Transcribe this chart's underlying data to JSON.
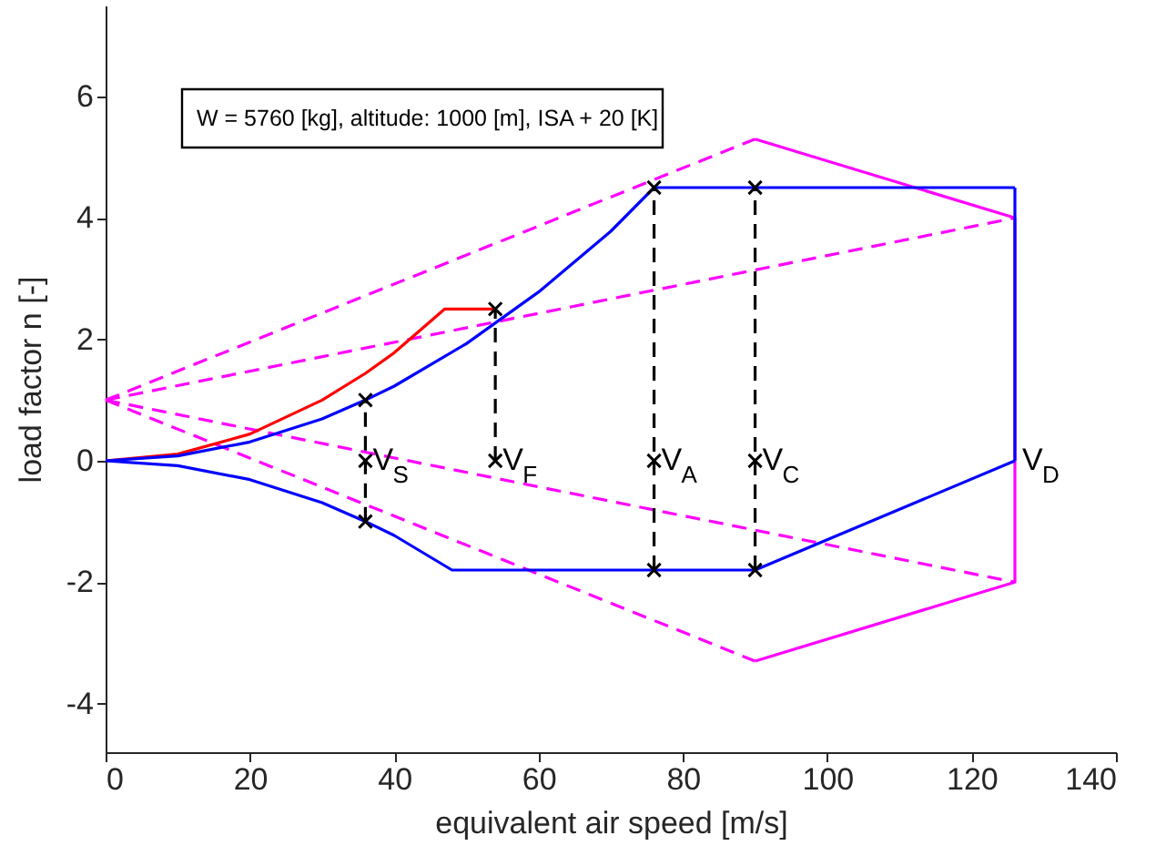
{
  "chart_data": {
    "type": "line",
    "xlabel": "equivalent air speed [m/s]",
    "ylabel": "load factor n [-]",
    "xlim": [
      0,
      140
    ],
    "ylim": [
      -4.8,
      7.5
    ],
    "xticks": [
      0,
      20,
      40,
      60,
      80,
      100,
      120,
      140
    ],
    "yticks": [
      -4,
      -2,
      0,
      2,
      4,
      6
    ],
    "grid": false,
    "series": [
      {
        "color": "#ff00ff",
        "line_style": "dashed",
        "marker": "none",
        "x": [
          0,
          90
        ],
        "values": [
          1,
          5.3
        ]
      },
      {
        "color": "#ff00ff",
        "line_style": "dashed",
        "marker": "none",
        "x": [
          0,
          126
        ],
        "values": [
          1,
          4.0
        ]
      },
      {
        "color": "#ff00ff",
        "line_style": "dashed",
        "marker": "none",
        "x": [
          0,
          90
        ],
        "values": [
          1,
          -3.3
        ]
      },
      {
        "color": "#ff00ff",
        "line_style": "dashed",
        "marker": "none",
        "x": [
          0,
          126
        ],
        "values": [
          1,
          -2.0
        ]
      },
      {
        "color": "#ff00ff",
        "line_style": "solid",
        "marker": "none",
        "x": [
          90,
          126,
          126,
          90
        ],
        "values": [
          5.3,
          4.0,
          -2.0,
          -3.3
        ]
      },
      {
        "color": "#ff0000",
        "line_style": "solid",
        "marker": "none",
        "x": [
          0,
          10,
          20,
          30,
          36,
          40,
          47,
          54
        ],
        "values": [
          0,
          0.11,
          0.44,
          1.0,
          1.44,
          1.78,
          2.5,
          2.5
        ]
      },
      {
        "color": "#0000ff",
        "line_style": "solid",
        "marker": "none",
        "x": [
          0,
          10,
          20,
          30,
          36,
          40,
          50,
          60,
          70,
          76,
          126
        ],
        "values": [
          0,
          0.08,
          0.31,
          0.69,
          1.0,
          1.23,
          1.93,
          2.78,
          3.78,
          4.5,
          4.5
        ]
      },
      {
        "color": "#0000ff",
        "line_style": "solid",
        "marker": "none",
        "x": [
          126,
          126
        ],
        "values": [
          0,
          4.5
        ]
      },
      {
        "color": "#0000ff",
        "line_style": "solid",
        "marker": "none",
        "x": [
          0,
          10,
          20,
          30,
          36,
          40,
          48,
          90,
          126
        ],
        "values": [
          0,
          -0.08,
          -0.31,
          -0.69,
          -1.0,
          -1.23,
          -1.8,
          -1.8,
          0
        ]
      },
      {
        "color": "#000000",
        "line_style": "dashed",
        "marker": "cross",
        "x": [
          36,
          36,
          36
        ],
        "values": [
          -1,
          0,
          1
        ]
      },
      {
        "color": "#000000",
        "line_style": "dashed",
        "marker": "cross",
        "x": [
          54,
          54
        ],
        "values": [
          0,
          2.5
        ]
      },
      {
        "color": "#000000",
        "line_style": "dashed",
        "marker": "cross",
        "x": [
          76,
          76,
          76
        ],
        "values": [
          -1.8,
          0,
          4.5
        ]
      },
      {
        "color": "#000000",
        "line_style": "dashed",
        "marker": "cross",
        "x": [
          90,
          90,
          90
        ],
        "values": [
          -1.8,
          0,
          4.5
        ]
      }
    ],
    "annotations": [
      "W = 5760 [kg], altitude: 1000 [m], ISA + 20 [K]",
      {
        "text": "V$_{S}$",
        "x": 36,
        "y": 0
      },
      {
        "text": "V$_{F}$",
        "x": 54,
        "y": 0
      },
      {
        "text": "V$_{A}$",
        "x": 76,
        "y": 0
      },
      {
        "text": "V$_{C}$",
        "x": 90,
        "y": 0
      },
      {
        "text": "V$_{D}$",
        "x": 126,
        "y": 0
      }
    ]
  }
}
